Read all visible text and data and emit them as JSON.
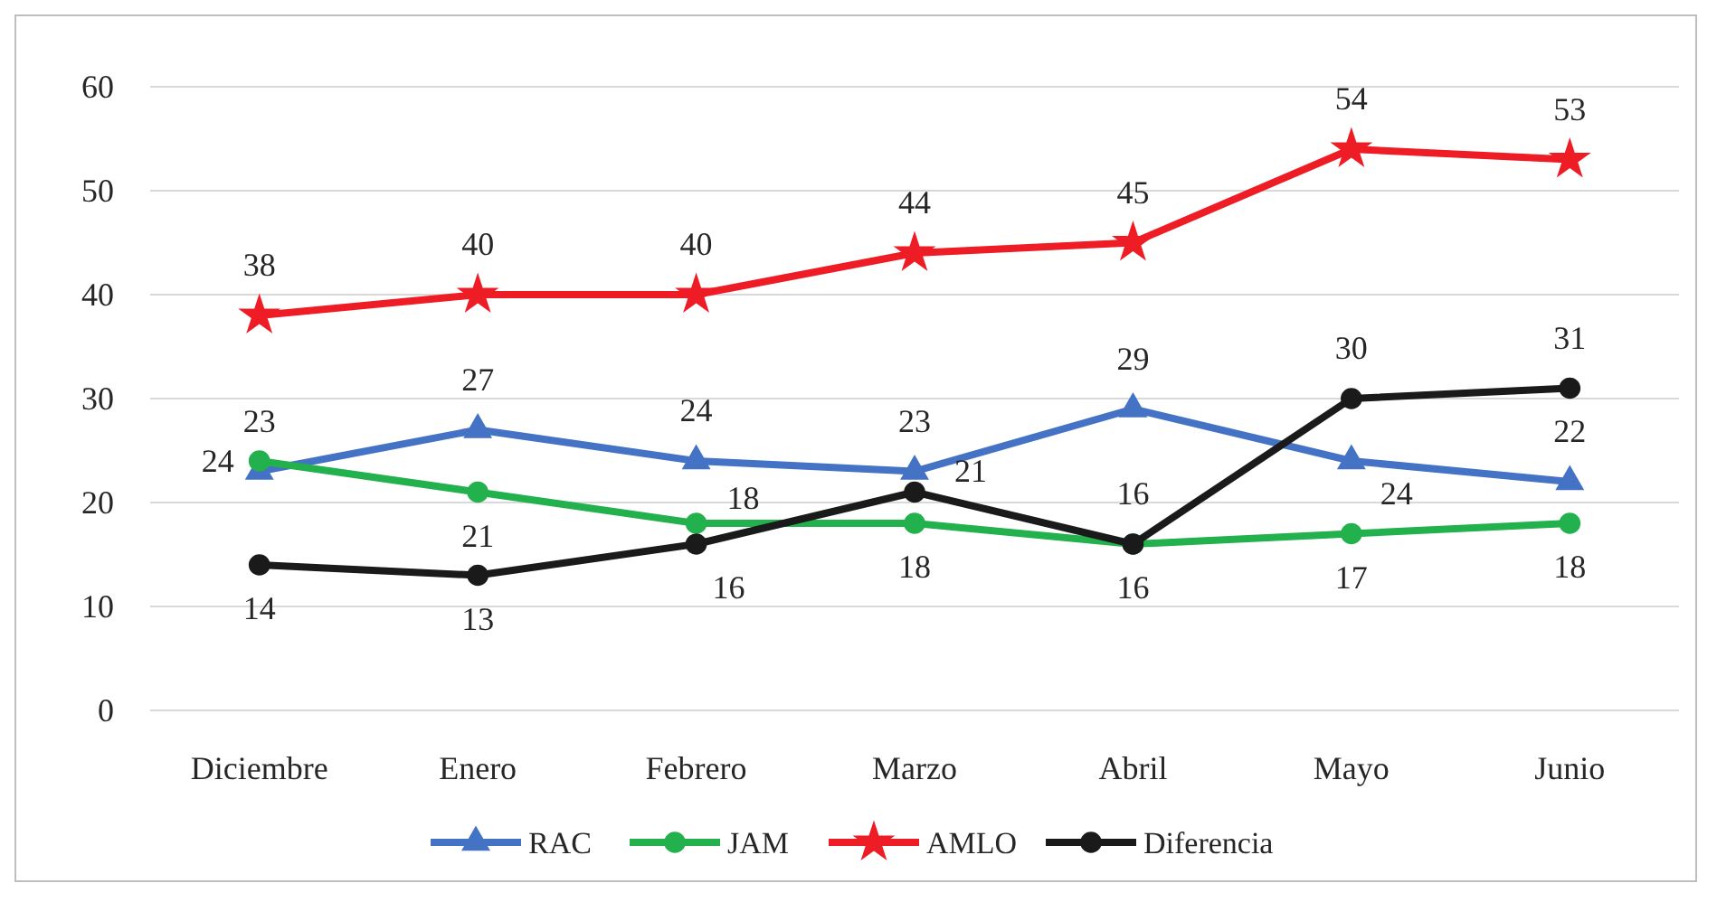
{
  "chart_data": {
    "type": "line",
    "categories": [
      "Diciembre",
      "Enero",
      "Febrero",
      "Marzo",
      "Abril",
      "Mayo",
      "Junio"
    ],
    "series": [
      {
        "name": "RAC",
        "color": "#4472c4",
        "marker": "triangle",
        "values": [
          23,
          27,
          24,
          23,
          29,
          24,
          22
        ]
      },
      {
        "name": "JAM",
        "color": "#22b14c",
        "marker": "circle",
        "values": [
          24,
          21,
          18,
          18,
          16,
          17,
          18
        ]
      },
      {
        "name": "AMLO",
        "color": "#ee1c25",
        "marker": "star",
        "values": [
          38,
          40,
          40,
          44,
          45,
          54,
          53
        ]
      },
      {
        "name": "Diferencia",
        "color": "#1a1a1a",
        "marker": "circle",
        "values": [
          14,
          13,
          16,
          21,
          16,
          30,
          31
        ]
      }
    ],
    "ylim": [
      0,
      60
    ],
    "yticks": [
      0,
      10,
      20,
      30,
      40,
      50,
      60
    ],
    "grid": "y",
    "legend": "bottom",
    "data_labels": true,
    "line_style": "solid"
  }
}
